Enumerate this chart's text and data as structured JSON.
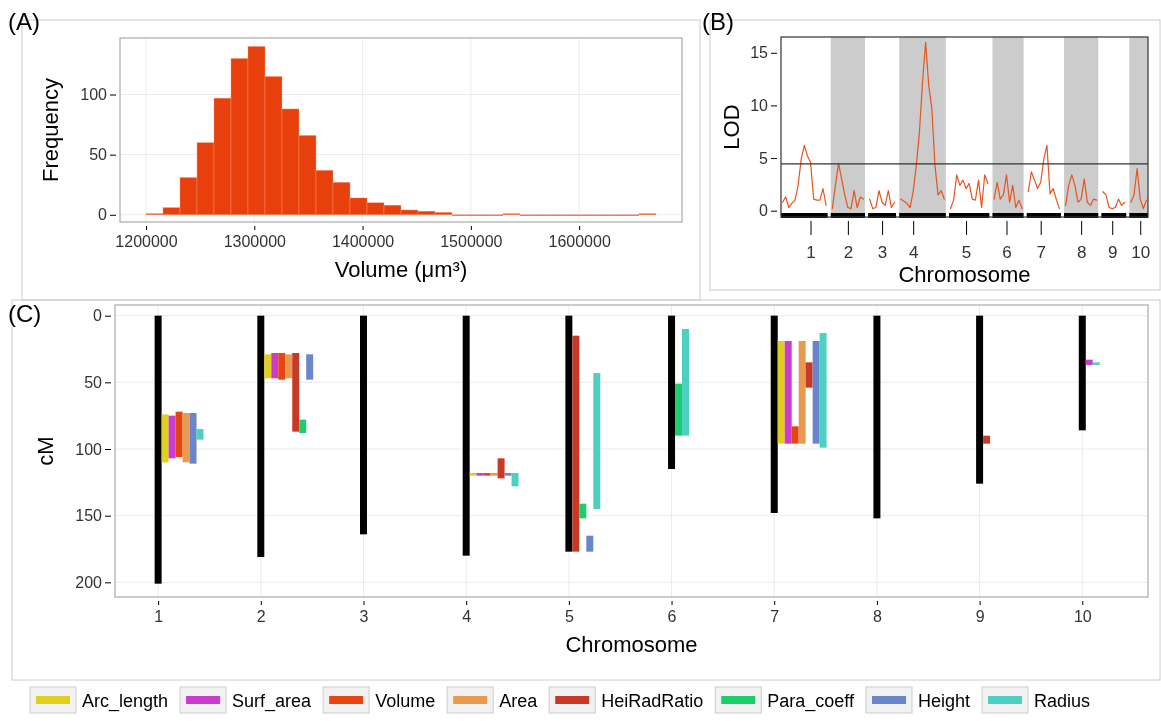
{
  "chart_data": [
    {
      "type": "histogram",
      "title": "(A)",
      "xlabel": "Volume (μm³)",
      "ylabel": "Frequency",
      "color": "#e8400c",
      "grid": true,
      "bins": [
        1200000,
        1215700,
        1231400,
        1247100,
        1262800,
        1278500,
        1294200,
        1309900,
        1325600,
        1341300,
        1357000,
        1372700,
        1388400,
        1404100,
        1419800,
        1435500,
        1451200,
        1466900,
        1482600,
        1498300,
        1514000,
        1529700,
        1545400,
        1561100,
        1576800,
        1592500,
        1608200,
        1623900,
        1639600,
        1655300,
        1671000
      ],
      "values": [
        1,
        6,
        31,
        60,
        97,
        130,
        140,
        115,
        88,
        66,
        37,
        27,
        14,
        10,
        8,
        4,
        3,
        2,
        0,
        0,
        0,
        1,
        0,
        0,
        0,
        0,
        0,
        0,
        0,
        1
      ],
      "xlim": [
        1176000,
        1695000
      ],
      "ylim": [
        -6,
        147
      ],
      "xticks": [
        1200000,
        1300000,
        1400000,
        1500000,
        1600000
      ],
      "yticks": [
        0,
        50,
        100
      ]
    },
    {
      "type": "line",
      "title": "(B)",
      "xlabel": "Chromosome",
      "ylabel": "LOD",
      "grid": false,
      "categories": [
        null,
        null,
        null,
        null,
        null,
        null,
        null,
        null,
        null,
        "1",
        null,
        null,
        null,
        null,
        null,
        null,
        null,
        null,
        null,
        null,
        null,
        "2",
        null,
        null,
        null,
        null,
        null,
        null,
        null,
        null,
        null,
        null,
        "3",
        null,
        null,
        null,
        null,
        null,
        null,
        null,
        null,
        null,
        "4",
        null,
        null,
        null,
        null,
        null,
        null,
        null,
        null,
        null,
        null,
        null,
        null,
        null,
        null,
        null,
        null,
        "5",
        null,
        null,
        null,
        null,
        null,
        null,
        null,
        null,
        null,
        null,
        null,
        null,
        "6",
        null,
        null,
        null,
        null,
        null,
        null,
        null,
        null,
        null,
        null,
        "7",
        null,
        null,
        null,
        null,
        null,
        null,
        null,
        null,
        null,
        null,
        null,
        null,
        "8",
        null,
        null,
        null,
        null,
        null,
        null,
        null,
        null,
        null,
        "9",
        null,
        null,
        null,
        null,
        null,
        null,
        null,
        null,
        "10",
        null,
        null
      ],
      "ylim": [
        -0.6,
        16.5
      ],
      "yticks": [
        0,
        5,
        10,
        15
      ],
      "ref_lines": [
        {
          "axis": "y",
          "value": 4.45,
          "color": "#333333"
        }
      ],
      "series": [
        {
          "color": "#e8541e",
          "values": [
            0.8,
            1.3,
            0.3,
            0.7,
            1.0,
            2.4,
            4.9,
            6.2,
            5.2,
            4.6,
            1.1,
            1.0,
            1.0,
            2.1,
            0.5,
            null,
            0.2,
            2.4,
            4.5,
            3.0,
            1.5,
            0.3,
            0.2,
            1.9,
            0.3,
            1.3,
            1.1,
            null,
            1.1,
            0.2,
            0.3,
            1.9,
            0.8,
            0.5,
            1.9,
            0.3,
            0.8,
            null,
            1.1,
            0.9,
            0.7,
            0.3,
            1.8,
            4.3,
            7.4,
            12.2,
            16.0,
            11.9,
            9.7,
            4.3,
            1.5,
            1.9,
            1.1,
            null,
            0.2,
            1.0,
            3.4,
            2.4,
            2.9,
            2.1,
            2.6,
            1.1,
            1.0,
            2.9,
            0.3,
            3.4,
            2.6,
            null,
            1.1,
            2.7,
            1.1,
            1.5,
            3.4,
            0.8,
            2.4,
            0.3,
            1.0,
            0.2,
            null,
            1.8,
            3.7,
            2.9,
            2.1,
            2.7,
            4.9,
            6.2,
            1.6,
            2.1,
            1.1,
            0.2,
            null,
            0.5,
            2.4,
            3.4,
            2.4,
            0.8,
            1.1,
            3.0,
            0.8,
            0.5,
            1.1,
            1.0,
            null,
            1.8,
            1.5,
            0.3,
            0.2,
            0.3,
            1.1,
            0.5,
            0.8,
            null,
            0.8,
            1.5,
            4.0,
            1.1,
            0.2,
            1.0
          ]
        }
      ]
    },
    {
      "type": "bar",
      "title": "(C)",
      "xlabel": "Chromosome",
      "ylabel": "cM",
      "grid": true,
      "legend": "bottom",
      "categories": [
        "1",
        "2",
        "3",
        "4",
        "5",
        "6",
        "7",
        "8",
        "9",
        "10"
      ],
      "ylim": [
        211,
        -8
      ],
      "yticks": [
        0,
        50,
        100,
        150,
        200
      ],
      "series": [
        {
          "color": "#000000",
          "base": [
            0,
            0,
            0,
            0,
            0,
            0,
            0,
            0,
            0,
            0
          ],
          "values": [
            201,
            181,
            164,
            180,
            177,
            115,
            148,
            152,
            126,
            86
          ]
        },
        {
          "name": "Arc_length",
          "color": "#e0cf1f",
          "base": [
            74,
            29,
            null,
            118,
            null,
            null,
            19,
            null,
            null,
            null
          ],
          "values": [
            36,
            18,
            null,
            2,
            null,
            null,
            77,
            null,
            null,
            null
          ]
        },
        {
          "name": "Surf_area",
          "color": "#c93ccd",
          "base": [
            75,
            28,
            null,
            118,
            null,
            null,
            19,
            null,
            null,
            33
          ],
          "values": [
            32,
            19,
            null,
            2,
            null,
            null,
            77,
            null,
            null,
            4
          ]
        },
        {
          "name": "Volume",
          "color": "#e84410",
          "base": [
            72,
            28,
            null,
            118,
            null,
            null,
            83,
            null,
            null,
            null
          ],
          "values": [
            34,
            20,
            null,
            2,
            null,
            null,
            13,
            null,
            null,
            null
          ]
        },
        {
          "name": "Area",
          "color": "#e89b4f",
          "base": [
            73,
            29,
            null,
            118,
            null,
            null,
            19,
            null,
            null,
            null
          ],
          "values": [
            37,
            18,
            null,
            2,
            null,
            null,
            77,
            null,
            null,
            null
          ]
        },
        {
          "name": "HeiRadRatio",
          "color": "#c83a26",
          "base": [
            null,
            28,
            null,
            107,
            15,
            null,
            35,
            null,
            90,
            null
          ],
          "values": [
            null,
            59,
            null,
            15,
            162,
            null,
            19,
            null,
            6,
            null
          ]
        },
        {
          "name": "Para_coeff",
          "color": "#1ccd6b",
          "base": [
            null,
            78,
            null,
            null,
            141,
            51,
            null,
            null,
            null,
            null
          ],
          "values": [
            null,
            10,
            null,
            null,
            11,
            39,
            null,
            null,
            null,
            null
          ]
        },
        {
          "name": "Height",
          "color": "#6a85cb",
          "base": [
            73,
            29,
            null,
            118,
            165,
            null,
            19,
            null,
            null,
            null
          ],
          "values": [
            38,
            19,
            null,
            2,
            12,
            null,
            77,
            null,
            null,
            null
          ]
        },
        {
          "name": "Radius",
          "color": "#4dcfc2",
          "base": [
            85,
            null,
            null,
            118,
            43,
            10,
            13,
            null,
            null,
            35
          ],
          "values": [
            8,
            null,
            null,
            10,
            102,
            80,
            86,
            null,
            null,
            2
          ]
        }
      ]
    }
  ]
}
